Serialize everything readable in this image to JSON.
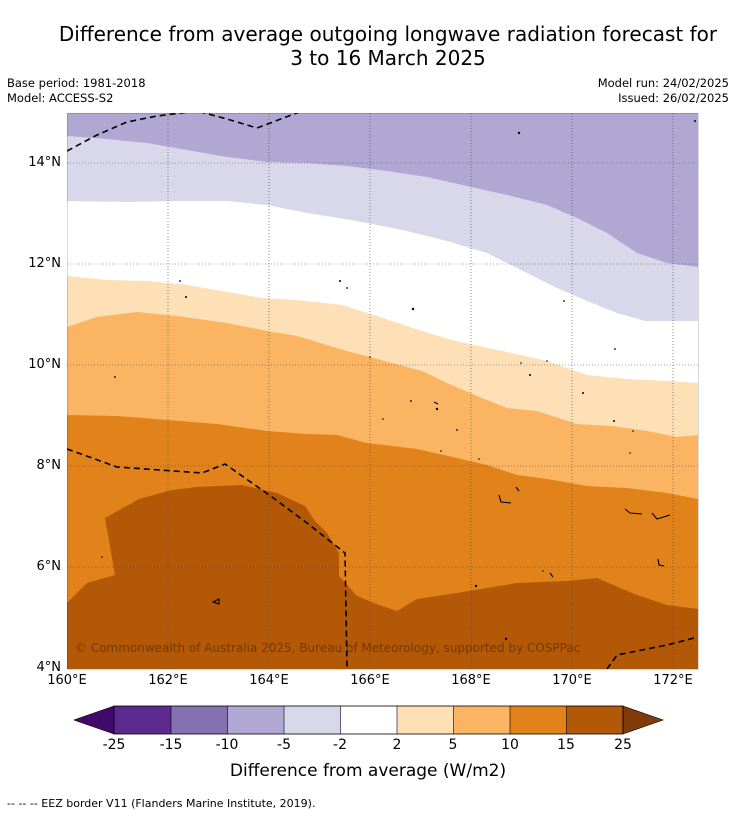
{
  "title_line1": "Difference from average outgoing longwave radiation forecast for",
  "title_line2": "3 to 16 March 2025",
  "base_period": "Base period: 1981-2018",
  "model": "Model: ACCESS-S2",
  "model_run": "Model run: 24/02/2025",
  "issued": "Issued: 26/02/2025",
  "copyright": "© Commonwealth of Australia 2025, Bureau of Meteorology, supported by COSPPac",
  "y_ticks": [
    "14°N",
    "12°N",
    "10°N",
    "8°N",
    "6°N",
    "4°N"
  ],
  "x_ticks": [
    "160°E",
    "162°E",
    "164°E",
    "166°E",
    "168°E",
    "170°E",
    "172°E"
  ],
  "colorbar": {
    "ticks": [
      "-25",
      "-15",
      "-10",
      "-5",
      "-2",
      "2",
      "5",
      "10",
      "15",
      "25"
    ],
    "colors": [
      "#3f0a6b",
      "#5b2a8e",
      "#8472b0",
      "#b0a8d2",
      "#d9d8ea",
      "#ffffff",
      "#fde0b6",
      "#fbb562",
      "#e2821a",
      "#b35806",
      "#7f3b08"
    ],
    "label": "Difference from average (W/m2)"
  },
  "footnote": "--  --  -- EEZ border V11 (Flanders Marine Institute, 2019)."
}
